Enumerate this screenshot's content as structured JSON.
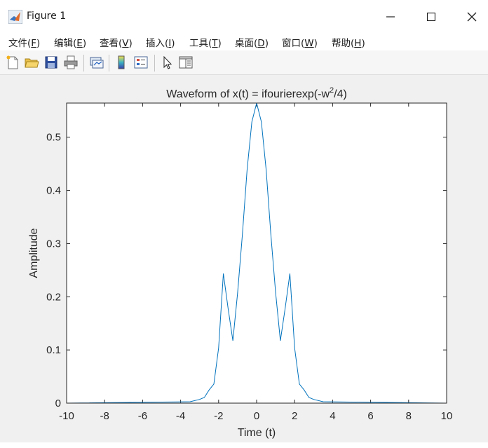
{
  "window": {
    "title": "Figure 1",
    "controls": {
      "minimize": "minimize",
      "maximize": "maximize",
      "close": "close"
    }
  },
  "menu": [
    {
      "text": "文件(",
      "key": "F",
      "tail": ")"
    },
    {
      "text": "编辑(",
      "key": "E",
      "tail": ")"
    },
    {
      "text": "查看(",
      "key": "V",
      "tail": ")"
    },
    {
      "text": "插入(",
      "key": "I",
      "tail": ")"
    },
    {
      "text": "工具(",
      "key": "T",
      "tail": ")"
    },
    {
      "text": "桌面(",
      "key": "D",
      "tail": ")"
    },
    {
      "text": "窗口(",
      "key": "W",
      "tail": ")"
    },
    {
      "text": "帮助(",
      "key": "H",
      "tail": ")"
    }
  ],
  "toolbar": {
    "icons": [
      "new-file-icon",
      "open-folder-icon",
      "save-icon",
      "print-icon",
      "link-plot-icon",
      "colorbar-icon",
      "legend-icon",
      "pointer-arrow-icon",
      "property-editor-icon"
    ]
  },
  "chart_data": {
    "type": "line",
    "title_main": "Waveform of x(t) = ifourierexp(-w",
    "title_sup": "2",
    "title_tail": "/4)",
    "xlabel": "Time (t)",
    "ylabel": "Amplitude",
    "xlim": [
      -10,
      10
    ],
    "ylim": [
      0,
      0.5642
    ],
    "xticks": [
      -10,
      -8,
      -6,
      -4,
      -2,
      0,
      2,
      4,
      6,
      8,
      10
    ],
    "xtick_labels": [
      "-10",
      "-8",
      "-6",
      "-4",
      "-2",
      "0",
      "2",
      "4",
      "6",
      "8",
      "10"
    ],
    "yticks": [
      0,
      0.1,
      0.2,
      0.3,
      0.4,
      0.5
    ],
    "ytick_labels": [
      "0",
      "0.1",
      "0.2",
      "0.3",
      "0.4",
      "0.5"
    ],
    "line_color": "#0072bd",
    "grid": false,
    "series": [
      {
        "x": [
          -10,
          -3.5,
          -3,
          -2.75,
          -2.5,
          -2.25,
          -2,
          -1.75,
          -1.5,
          -1.25,
          -1,
          -0.75,
          -0.5,
          -0.25,
          0,
          0.25,
          0.5,
          0.75,
          1,
          1.25,
          1.5,
          1.75,
          2,
          2.25,
          2.5,
          2.75,
          3,
          3.5,
          10
        ],
        "y": [
          0,
          0.0026,
          0.007,
          0.0107,
          0.0248,
          0.0358,
          0.1038,
          0.2437,
          0.1779,
          0.1174,
          0.2076,
          0.3167,
          0.4393,
          0.529,
          0.5642,
          0.529,
          0.4393,
          0.3167,
          0.2076,
          0.1174,
          0.1779,
          0.2437,
          0.1038,
          0.0358,
          0.0248,
          0.0107,
          0.007,
          0.0026,
          0
        ]
      }
    ]
  }
}
